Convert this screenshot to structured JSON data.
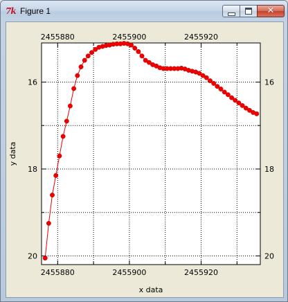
{
  "window": {
    "title": "Figure 1",
    "icon": "tk-feather-icon",
    "controls": [
      "minimize-icon",
      "maximize-icon",
      "close-icon"
    ]
  },
  "colors": {
    "series": "#ee0000",
    "background": "#ece9d8",
    "plot_background": "#ffffff"
  },
  "chart_data": {
    "type": "line",
    "title": "",
    "xlabel": "x data",
    "ylabel": "y data",
    "xlim": [
      2455875.5,
      2455936.5
    ],
    "ylim": [
      15.1,
      20.2
    ],
    "y_inverted": true,
    "grid": true,
    "grid_style": "dotted",
    "legend": "none",
    "x_ticks": [
      2455880,
      2455900,
      2455920
    ],
    "x_tick_labels": [
      "2455880",
      "2455900",
      "2455920"
    ],
    "y_ticks": [
      16,
      18,
      20
    ],
    "y_tick_labels": [
      "16",
      "18",
      "20"
    ],
    "series": [
      {
        "marker": "circle",
        "x": [
          2455876.5,
          2455877.5,
          2455878.5,
          2455879.5,
          2455880.5,
          2455881.5,
          2455882.5,
          2455883.5,
          2455884.5,
          2455885.5,
          2455886.5,
          2455887.5,
          2455888.5,
          2455889.5,
          2455890.5,
          2455891.5,
          2455892.5,
          2455893.5,
          2455894.5,
          2455895.5,
          2455896.5,
          2455897.5,
          2455898.5,
          2455899.5,
          2455900.5,
          2455901.5,
          2455902.5,
          2455903.5,
          2455904.5,
          2455905.5,
          2455906.5,
          2455907.5,
          2455908.5,
          2455909.5,
          2455910.5,
          2455911.5,
          2455912.5,
          2455913.5,
          2455914.5,
          2455915.5,
          2455916.5,
          2455917.5,
          2455918.5,
          2455919.5,
          2455920.5,
          2455921.5,
          2455922.5,
          2455923.5,
          2455924.5,
          2455925.5,
          2455926.5,
          2455927.5,
          2455928.5,
          2455929.5,
          2455930.5,
          2455931.5,
          2455932.5,
          2455933.5,
          2455934.5,
          2455935.5
        ],
        "y": [
          20.05,
          19.25,
          18.6,
          18.15,
          17.7,
          17.25,
          16.9,
          16.55,
          16.15,
          15.85,
          15.65,
          15.5,
          15.4,
          15.32,
          15.25,
          15.2,
          15.18,
          15.16,
          15.15,
          15.13,
          15.12,
          15.12,
          15.11,
          15.12,
          15.15,
          15.22,
          15.3,
          15.4,
          15.5,
          15.55,
          15.6,
          15.63,
          15.67,
          15.69,
          15.69,
          15.69,
          15.69,
          15.69,
          15.68,
          15.7,
          15.73,
          15.75,
          15.77,
          15.8,
          15.85,
          15.9,
          15.97,
          16.03,
          16.1,
          16.16,
          16.23,
          16.29,
          16.36,
          16.42,
          16.48,
          16.54,
          16.6,
          16.65,
          16.7,
          16.73
        ]
      }
    ]
  }
}
